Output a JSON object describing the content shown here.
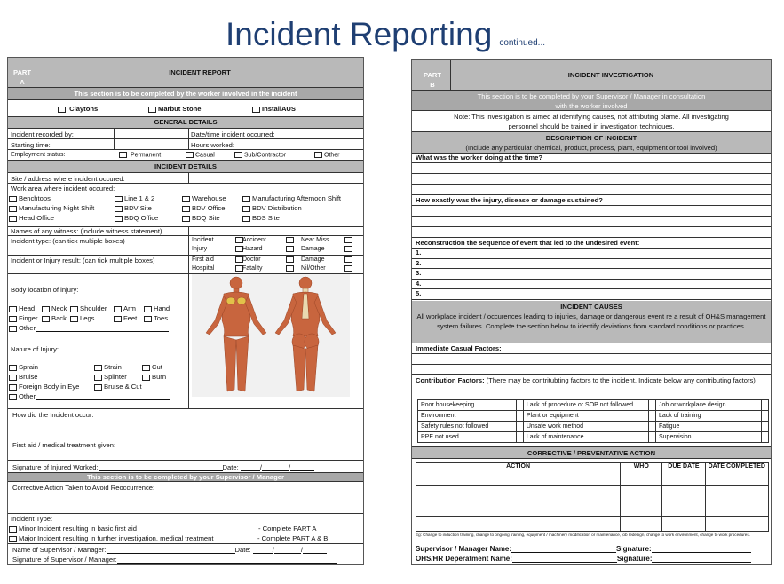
{
  "title": "Incident Reporting",
  "title_suffix": "continued...",
  "part_a": {
    "part_label": "PART A",
    "heading": "INCIDENT REPORT",
    "worker_note": "This section is to be completed by the worker involved in the incident",
    "companies": [
      "Claytons",
      "Marbut Stone",
      "InstallAUS"
    ],
    "general_details": "GENERAL DETAILS",
    "recorded_by": "Incident recorded by:",
    "date_time": "Date/time incident occurred:",
    "starting_time": "Starting time:",
    "hours_worked": "Hours worked:",
    "employment_status": "Employment status:",
    "employment_options": [
      "Permanent",
      "Casual",
      "Sub/Contractor",
      "Other"
    ],
    "incident_details": "INCIDENT DETAILS",
    "site": "Site / address where incident occured:",
    "work_area": "Work area where incident occured:",
    "work_areas": [
      "Benchtops",
      "Line 1 & 2",
      "Warehouse",
      "Manufacturing Afternoon Shift",
      "Manufacturing Night Shift",
      "BDV Site",
      "BDV Office",
      "BDV Distribution",
      "Head Office",
      "BDQ Office",
      "BDQ Site",
      "BDS Site"
    ],
    "witness": "Names of any witness: (include witness statement)",
    "incident_type": "Incident type: (can tick multiple boxes)",
    "incident_type_options": [
      "Incident",
      "Accident",
      "Near Miss",
      "Injury",
      "Hazard",
      "Damage"
    ],
    "result": "Incident or Injury result: (can tick multiple boxes)",
    "result_options": [
      "First aid",
      "Doctor",
      "Damage",
      "Hospital",
      "Fatality",
      "Nil/Other"
    ],
    "body_location": "Body location of injury:",
    "body_parts": [
      "Head",
      "Neck",
      "Shoulder",
      "Arm",
      "Hand",
      "Finger",
      "Back",
      "Legs",
      "Feet",
      "Toes"
    ],
    "other": "Other",
    "nature": "Nature of Injury:",
    "natures": [
      "Sprain",
      "Strain",
      "Cut",
      "Bruise",
      "Splinter",
      "Burn",
      "Foreign Body in Eye",
      "Bruise & Cut"
    ],
    "how_occur": "How did the Incident occur:",
    "first_aid": "First aid / medical treatment given:",
    "sig_injured": "Signature of Injured Worked:",
    "date": "Date:",
    "supervisor_note": "This section is to be completed by your Supervisor / Manager",
    "corrective": "Corrective Action Taken to Avoid Reoccurrence:",
    "type2": "Incident Type:",
    "minor": "Minor Incident resulting in basic first aid",
    "minor_action": "-  Complete PART A",
    "major": "Major Incident resulting in further investigation, medical treatment",
    "major_action": "-  Complete PART A & B",
    "sup_name": "Name of Supervisor / Manager:",
    "sup_sig": "Signature of Supervisor / Manager:"
  },
  "part_b": {
    "part_label": "PART B",
    "heading": "INCIDENT INVESTIGATION",
    "consult_note_1": "This section is to be completed by your Supervisor / Manager in consultation",
    "consult_note_2": "with the worker involved",
    "note_1": "Note: This investigation is aimed at identifying causes, not attributing blame. All investigating",
    "note_2": "personnel should be trained in investigation techniques.",
    "description": "DESCRIPTION OF INCIDENT",
    "description_sub": "(Include any particular chemical, product, process, plant, equipment or tool involved)",
    "what": "What was the worker doing at the time?",
    "how": "How exactly was the injury, disease or damage sustained?",
    "reconstruction": "Reconstruction the sequence of event that led to the undesired event:",
    "steps": [
      "1.",
      "2.",
      "3.",
      "4.",
      "5."
    ],
    "causes": "INCIDENT CAUSES",
    "causes_text": "All workplace incident / occurences leading to injuries, damage or dangerous event re a result of OH&S management system failures. Complete the section below to identify deviations from standard conditions or practices.",
    "immediate": "Immediate Casual Factors:",
    "contribution_bold": "Contribution Factors:",
    "contribution_text": " (There may be contritubting factors to the incident, Indicate below any contributing factors)",
    "factors": [
      [
        "Poor housekeeping",
        "Lack of procedure or SOP not followed",
        "Job or workplace design"
      ],
      [
        "Environment",
        "Plant or equipment",
        "Lack of training"
      ],
      [
        "Safety rules not followed",
        "Unsafe work method",
        "Fatigue"
      ],
      [
        "PPE not used",
        "Lack of maintenance",
        "Supervision"
      ]
    ],
    "corrective": "CORRECTIVE / PREVENTATIVE ACTION",
    "action_headers": [
      "ACTION",
      "WHO",
      "DUE DATE",
      "DATE COMPLETED"
    ],
    "eg": "Eg: Change to induction training, change to ongoing training, equipment / machinery modification or maintenance, job redesign, change to work environment, change to work procedures.",
    "sup_name": "Supervisor / Manager Name:",
    "signature": "Signature:",
    "ohs_name": "OHS/HR Deperatment Name:"
  }
}
